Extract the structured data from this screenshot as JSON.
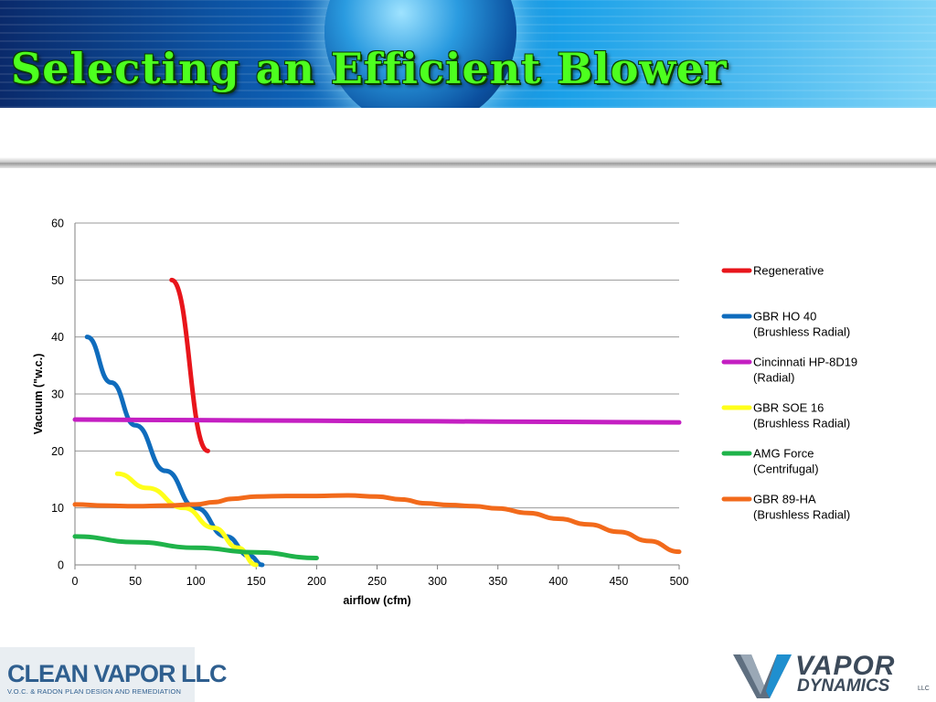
{
  "slide": {
    "title": "Selecting an Efficient Blower"
  },
  "logos": {
    "left_name": "CLEAN VAPOR LLC",
    "left_tagline": "V.O.C. & RADON PLAN DESIGN AND REMEDIATION",
    "right_name_top": "VAPOR",
    "right_name_bottom": "DYNAMICS",
    "right_suffix": "LLC"
  },
  "chart_data": {
    "type": "line",
    "xlabel": "airflow (cfm)",
    "ylabel": "Vacuum (\"w.c.)",
    "xlim": [
      0,
      500
    ],
    "ylim": [
      0,
      60
    ],
    "xticks": [
      0,
      50,
      100,
      150,
      200,
      250,
      300,
      350,
      400,
      450,
      500
    ],
    "yticks": [
      0,
      10,
      20,
      30,
      40,
      50,
      60
    ],
    "grid": "horizontal",
    "legend_position": "right",
    "series": [
      {
        "name": "Regenerative",
        "color": "#e8151b",
        "points": [
          [
            80,
            50
          ],
          [
            110,
            20
          ]
        ]
      },
      {
        "name": "GBR HO 40\n(Brushless Radial)",
        "color": "#0f6cbd",
        "points": [
          [
            10,
            40
          ],
          [
            30,
            32
          ],
          [
            50,
            24.5
          ],
          [
            75,
            16.5
          ],
          [
            100,
            10
          ],
          [
            125,
            5
          ],
          [
            145,
            1.5
          ],
          [
            155,
            0
          ]
        ]
      },
      {
        "name": "Cincinnati HP-8D19\n(Radial)",
        "color": "#c41fc2",
        "points": [
          [
            0,
            25.5
          ],
          [
            100,
            25.4
          ],
          [
            200,
            25.3
          ],
          [
            300,
            25.2
          ],
          [
            400,
            25.1
          ],
          [
            500,
            25
          ]
        ]
      },
      {
        "name": "GBR SOE 16\n(Brushless Radial)",
        "color": "#ffff1a",
        "points": [
          [
            35,
            16
          ],
          [
            60,
            13.5
          ],
          [
            90,
            10
          ],
          [
            115,
            6.5
          ],
          [
            135,
            3
          ],
          [
            150,
            0
          ]
        ]
      },
      {
        "name": "AMG Force\n(Centrifugal)",
        "color": "#1fb34a",
        "points": [
          [
            0,
            5
          ],
          [
            50,
            4
          ],
          [
            100,
            3
          ],
          [
            150,
            2.2
          ],
          [
            200,
            1.2
          ]
        ]
      },
      {
        "name": "GBR 89-HA\n(Brushless Radial)",
        "color": "#f26a1b",
        "points": [
          [
            0,
            10.6
          ],
          [
            25,
            10.4
          ],
          [
            50,
            10.3
          ],
          [
            75,
            10.4
          ],
          [
            100,
            10.6
          ],
          [
            115,
            11
          ],
          [
            130,
            11.6
          ],
          [
            150,
            12
          ],
          [
            175,
            12.1
          ],
          [
            200,
            12.1
          ],
          [
            225,
            12.2
          ],
          [
            250,
            12
          ],
          [
            270,
            11.5
          ],
          [
            290,
            10.8
          ],
          [
            310,
            10.5
          ],
          [
            330,
            10.3
          ],
          [
            350,
            9.9
          ],
          [
            375,
            9.1
          ],
          [
            400,
            8.1
          ],
          [
            425,
            7.1
          ],
          [
            450,
            5.8
          ],
          [
            475,
            4.2
          ],
          [
            500,
            2.3
          ]
        ]
      }
    ]
  }
}
